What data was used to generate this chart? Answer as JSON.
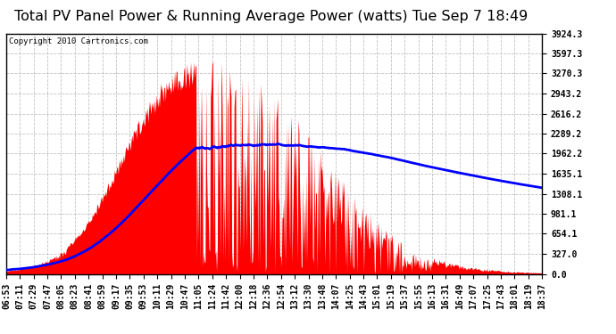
{
  "title": "Total PV Panel Power & Running Average Power (watts) Tue Sep 7 18:49",
  "copyright": "Copyright 2010 Cartronics.com",
  "y_max": 3924.3,
  "y_min": 0.0,
  "y_ticks": [
    0.0,
    327.0,
    654.1,
    981.1,
    1308.1,
    1635.1,
    1962.2,
    2289.2,
    2616.2,
    2943.2,
    3270.3,
    3597.3,
    3924.3
  ],
  "x_labels": [
    "06:53",
    "07:11",
    "07:29",
    "07:47",
    "08:05",
    "08:23",
    "08:41",
    "08:59",
    "09:17",
    "09:35",
    "09:53",
    "10:11",
    "10:29",
    "10:47",
    "11:05",
    "11:24",
    "11:42",
    "12:00",
    "12:18",
    "12:36",
    "12:54",
    "13:12",
    "13:30",
    "13:48",
    "14:07",
    "14:25",
    "14:43",
    "15:01",
    "15:19",
    "15:37",
    "15:55",
    "16:13",
    "16:31",
    "16:49",
    "17:07",
    "17:25",
    "17:43",
    "18:01",
    "18:19",
    "18:37"
  ],
  "background_color": "#ffffff",
  "fill_color": "#ff0000",
  "avg_line_color": "#0000ff",
  "grid_color": "#bbbbbb",
  "title_fontsize": 11.5,
  "tick_fontsize": 7,
  "copyright_fontsize": 6.5
}
